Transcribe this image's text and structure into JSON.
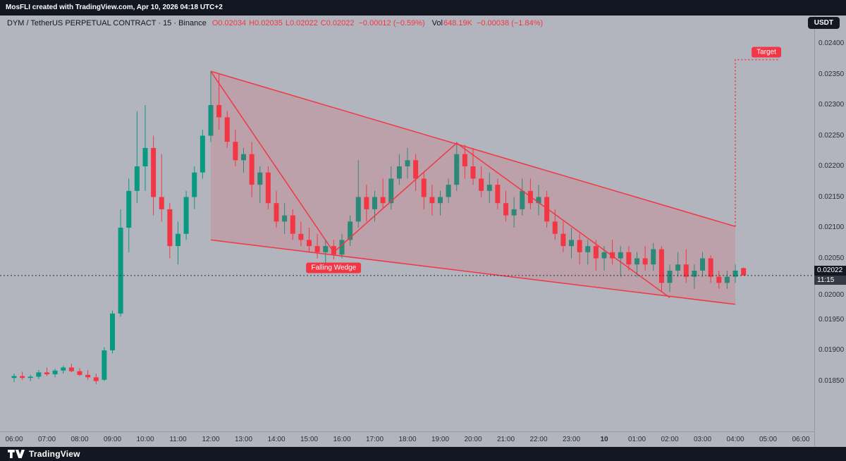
{
  "meta": {
    "attribution": "MosFLI created with TradingView.com, Apr 10, 2026 04:18 UTC+2",
    "footer_brand": "TradingView"
  },
  "header": {
    "symbol_title": "DYM / TetherUS PERPETUAL CONTRACT · 15 · Binance",
    "currency_button": "USDT",
    "legend": [
      {
        "t": "O0.02034",
        "ml": 8
      },
      {
        "t": "H0.02035",
        "ml": 4
      },
      {
        "t": "L0.02022",
        "ml": 4
      },
      {
        "t": "C0.02022",
        "ml": 4
      },
      {
        "t": "−0.00012 (−0.59%)",
        "ml": 6
      },
      {
        "t": "Vol",
        "c": "#131722",
        "ml": 10
      },
      {
        "t": "648.19K",
        "ml": 1
      },
      {
        "t": "−0.00038 (−1.84%)",
        "ml": 6
      }
    ]
  },
  "chart_data": {
    "type": "candlestick",
    "title": "DYM / TetherUS PERPETUAL CONTRACT · 15 · Binance",
    "interval": "15m",
    "start_time": "06:00",
    "current_price": 0.02022,
    "current_price_label": "0.02022",
    "countdown": "11:15",
    "ylim": [
      0.0185,
      0.024
    ],
    "colors": {
      "up": "#089981",
      "down": "#f23645"
    },
    "y_ticks": [
      "0.02400",
      "0.02350",
      "0.02300",
      "0.02250",
      "0.02200",
      "0.02150",
      "0.02100",
      "0.02050",
      "0.02000",
      "0.01950",
      "0.01900",
      "0.01850"
    ],
    "x_ticks": [
      {
        "label": "06:00"
      },
      {
        "label": "07:00"
      },
      {
        "label": "08:00"
      },
      {
        "label": "09:00"
      },
      {
        "label": "10:00"
      },
      {
        "label": "11:00"
      },
      {
        "label": "12:00"
      },
      {
        "label": "13:00"
      },
      {
        "label": "14:00"
      },
      {
        "label": "15:00"
      },
      {
        "label": "16:00"
      },
      {
        "label": "17:00"
      },
      {
        "label": "18:00"
      },
      {
        "label": "19:00"
      },
      {
        "label": "20:00"
      },
      {
        "label": "21:00"
      },
      {
        "label": "22:00"
      },
      {
        "label": "23:00"
      },
      {
        "label": "10",
        "emphasis": true
      },
      {
        "label": "01:00"
      },
      {
        "label": "02:00"
      },
      {
        "label": "03:00"
      },
      {
        "label": "04:00"
      },
      {
        "label": "05:00"
      },
      {
        "label": "06:00"
      }
    ],
    "candles": [
      [
        0.01855,
        0.01862,
        0.01848,
        0.01858
      ],
      [
        0.01858,
        0.01865,
        0.01852,
        0.01855
      ],
      [
        0.01855,
        0.0186,
        0.0185,
        0.01857
      ],
      [
        0.01857,
        0.01868,
        0.01853,
        0.01864
      ],
      [
        0.01864,
        0.01872,
        0.01858,
        0.01861
      ],
      [
        0.01861,
        0.0187,
        0.01856,
        0.01867
      ],
      [
        0.01867,
        0.01875,
        0.01862,
        0.01872
      ],
      [
        0.01872,
        0.01878,
        0.01864,
        0.01866
      ],
      [
        0.01866,
        0.01871,
        0.01858,
        0.0186
      ],
      [
        0.0186,
        0.01868,
        0.01852,
        0.01856
      ],
      [
        0.01856,
        0.01862,
        0.01845,
        0.0185
      ],
      [
        0.01852,
        0.01905,
        0.0185,
        0.019
      ],
      [
        0.019,
        0.01965,
        0.01895,
        0.0196
      ],
      [
        0.0196,
        0.0213,
        0.01955,
        0.021
      ],
      [
        0.021,
        0.0218,
        0.0206,
        0.0216
      ],
      [
        0.0216,
        0.0229,
        0.0214,
        0.022
      ],
      [
        0.022,
        0.023,
        0.0216,
        0.0223
      ],
      [
        0.0223,
        0.0225,
        0.0212,
        0.0215
      ],
      [
        0.0215,
        0.0222,
        0.0211,
        0.0213
      ],
      [
        0.0213,
        0.0214,
        0.0205,
        0.0207
      ],
      [
        0.0207,
        0.0211,
        0.0204,
        0.0209
      ],
      [
        0.0209,
        0.0216,
        0.0208,
        0.0215
      ],
      [
        0.0215,
        0.022,
        0.0213,
        0.0219
      ],
      [
        0.0219,
        0.0226,
        0.0218,
        0.0225
      ],
      [
        0.0225,
        0.02355,
        0.0224,
        0.023
      ],
      [
        0.023,
        0.0235,
        0.0226,
        0.0228
      ],
      [
        0.0228,
        0.0229,
        0.0223,
        0.0224
      ],
      [
        0.0224,
        0.0226,
        0.022,
        0.0221
      ],
      [
        0.0221,
        0.0223,
        0.0219,
        0.0222
      ],
      [
        0.0222,
        0.0224,
        0.0215,
        0.0217
      ],
      [
        0.0217,
        0.022,
        0.0214,
        0.0219
      ],
      [
        0.0219,
        0.022,
        0.0213,
        0.0214
      ],
      [
        0.0214,
        0.0216,
        0.021,
        0.0211
      ],
      [
        0.0211,
        0.0214,
        0.0209,
        0.0212
      ],
      [
        0.0212,
        0.0213,
        0.0208,
        0.0209
      ],
      [
        0.0209,
        0.0211,
        0.0207,
        0.0208
      ],
      [
        0.0208,
        0.021,
        0.0206,
        0.0207
      ],
      [
        0.0207,
        0.0209,
        0.0205,
        0.0206
      ],
      [
        0.0206,
        0.0208,
        0.0204,
        0.0207
      ],
      [
        0.0207,
        0.0208,
        0.02048,
        0.02056
      ],
      [
        0.02056,
        0.0209,
        0.0205,
        0.0208
      ],
      [
        0.0208,
        0.0212,
        0.0207,
        0.0211
      ],
      [
        0.0211,
        0.0221,
        0.021,
        0.0215
      ],
      [
        0.0215,
        0.0217,
        0.0211,
        0.0213
      ],
      [
        0.0213,
        0.0216,
        0.0211,
        0.0215
      ],
      [
        0.0215,
        0.0218,
        0.0213,
        0.0214
      ],
      [
        0.0214,
        0.022,
        0.0213,
        0.0218
      ],
      [
        0.0218,
        0.0222,
        0.0217,
        0.022
      ],
      [
        0.022,
        0.0223,
        0.0218,
        0.0221
      ],
      [
        0.0221,
        0.0222,
        0.0216,
        0.0218
      ],
      [
        0.0218,
        0.0219,
        0.0213,
        0.0215
      ],
      [
        0.0215,
        0.0217,
        0.0212,
        0.0214
      ],
      [
        0.0214,
        0.0216,
        0.0212,
        0.0215
      ],
      [
        0.0215,
        0.0218,
        0.0214,
        0.0217
      ],
      [
        0.0217,
        0.0224,
        0.0216,
        0.0222
      ],
      [
        0.0222,
        0.02235,
        0.0218,
        0.022
      ],
      [
        0.022,
        0.0223,
        0.0217,
        0.0218
      ],
      [
        0.0218,
        0.022,
        0.0215,
        0.0216
      ],
      [
        0.0216,
        0.0219,
        0.0214,
        0.0217
      ],
      [
        0.0217,
        0.0218,
        0.0213,
        0.0214
      ],
      [
        0.0214,
        0.0216,
        0.0211,
        0.0212
      ],
      [
        0.0212,
        0.0215,
        0.021,
        0.0213
      ],
      [
        0.0213,
        0.0218,
        0.0212,
        0.0216
      ],
      [
        0.0216,
        0.0218,
        0.0213,
        0.0214
      ],
      [
        0.0214,
        0.0217,
        0.0212,
        0.0215
      ],
      [
        0.0215,
        0.0216,
        0.021,
        0.0211
      ],
      [
        0.0211,
        0.0213,
        0.0208,
        0.0209
      ],
      [
        0.0209,
        0.0211,
        0.0206,
        0.0207
      ],
      [
        0.0207,
        0.021,
        0.0205,
        0.0208
      ],
      [
        0.0208,
        0.0209,
        0.0204,
        0.0206
      ],
      [
        0.0206,
        0.0208,
        0.0204,
        0.0207
      ],
      [
        0.0207,
        0.0208,
        0.0203,
        0.0205
      ],
      [
        0.0205,
        0.0207,
        0.0203,
        0.0206
      ],
      [
        0.0206,
        0.0208,
        0.0204,
        0.0205
      ],
      [
        0.0205,
        0.0207,
        0.0202,
        0.0206
      ],
      [
        0.0206,
        0.0207,
        0.0203,
        0.0204
      ],
      [
        0.0204,
        0.0206,
        0.0202,
        0.0205
      ],
      [
        0.0205,
        0.0207,
        0.0203,
        0.0204
      ],
      [
        0.0204,
        0.02075,
        0.0203,
        0.02065
      ],
      [
        0.02065,
        0.0207,
        0.01995,
        0.0201
      ],
      [
        0.0201,
        0.0204,
        0.01995,
        0.0203
      ],
      [
        0.0203,
        0.0206,
        0.0202,
        0.0204
      ],
      [
        0.0204,
        0.02065,
        0.0201,
        0.0202
      ],
      [
        0.0202,
        0.0204,
        0.02,
        0.0203
      ],
      [
        0.0203,
        0.0206,
        0.0202,
        0.0205
      ],
      [
        0.0205,
        0.02055,
        0.0201,
        0.0202
      ],
      [
        0.0202,
        0.0203,
        0.02,
        0.0201
      ],
      [
        0.0201,
        0.0203,
        0.02,
        0.0202
      ],
      [
        0.0202,
        0.0204,
        0.0201,
        0.0203
      ],
      [
        0.02034,
        0.02035,
        0.02022,
        0.02022
      ]
    ],
    "annotations": {
      "wedge": {
        "fill": "rgba(242,54,69,0.16)",
        "line_color": "#f23645",
        "upper": [
          {
            "i": 24,
            "p": 0.02355
          },
          {
            "i": 88,
            "p": 0.02102
          }
        ],
        "lower": [
          {
            "i": 24,
            "p": 0.0208
          },
          {
            "i": 88,
            "p": 0.01975
          }
        ],
        "zigzag": [
          {
            "i": 24,
            "p": 0.02355
          },
          {
            "i": 39,
            "p": 0.0206
          },
          {
            "i": 54,
            "p": 0.02238
          },
          {
            "i": 80,
            "p": 0.01986
          }
        ]
      },
      "wedge_label": {
        "text": "Falling Wedge",
        "i": 39,
        "p": 0.02035
      },
      "target": {
        "text": "Target",
        "price": 0.02374,
        "from_i": 88,
        "from_p": 0.02102
      }
    }
  }
}
